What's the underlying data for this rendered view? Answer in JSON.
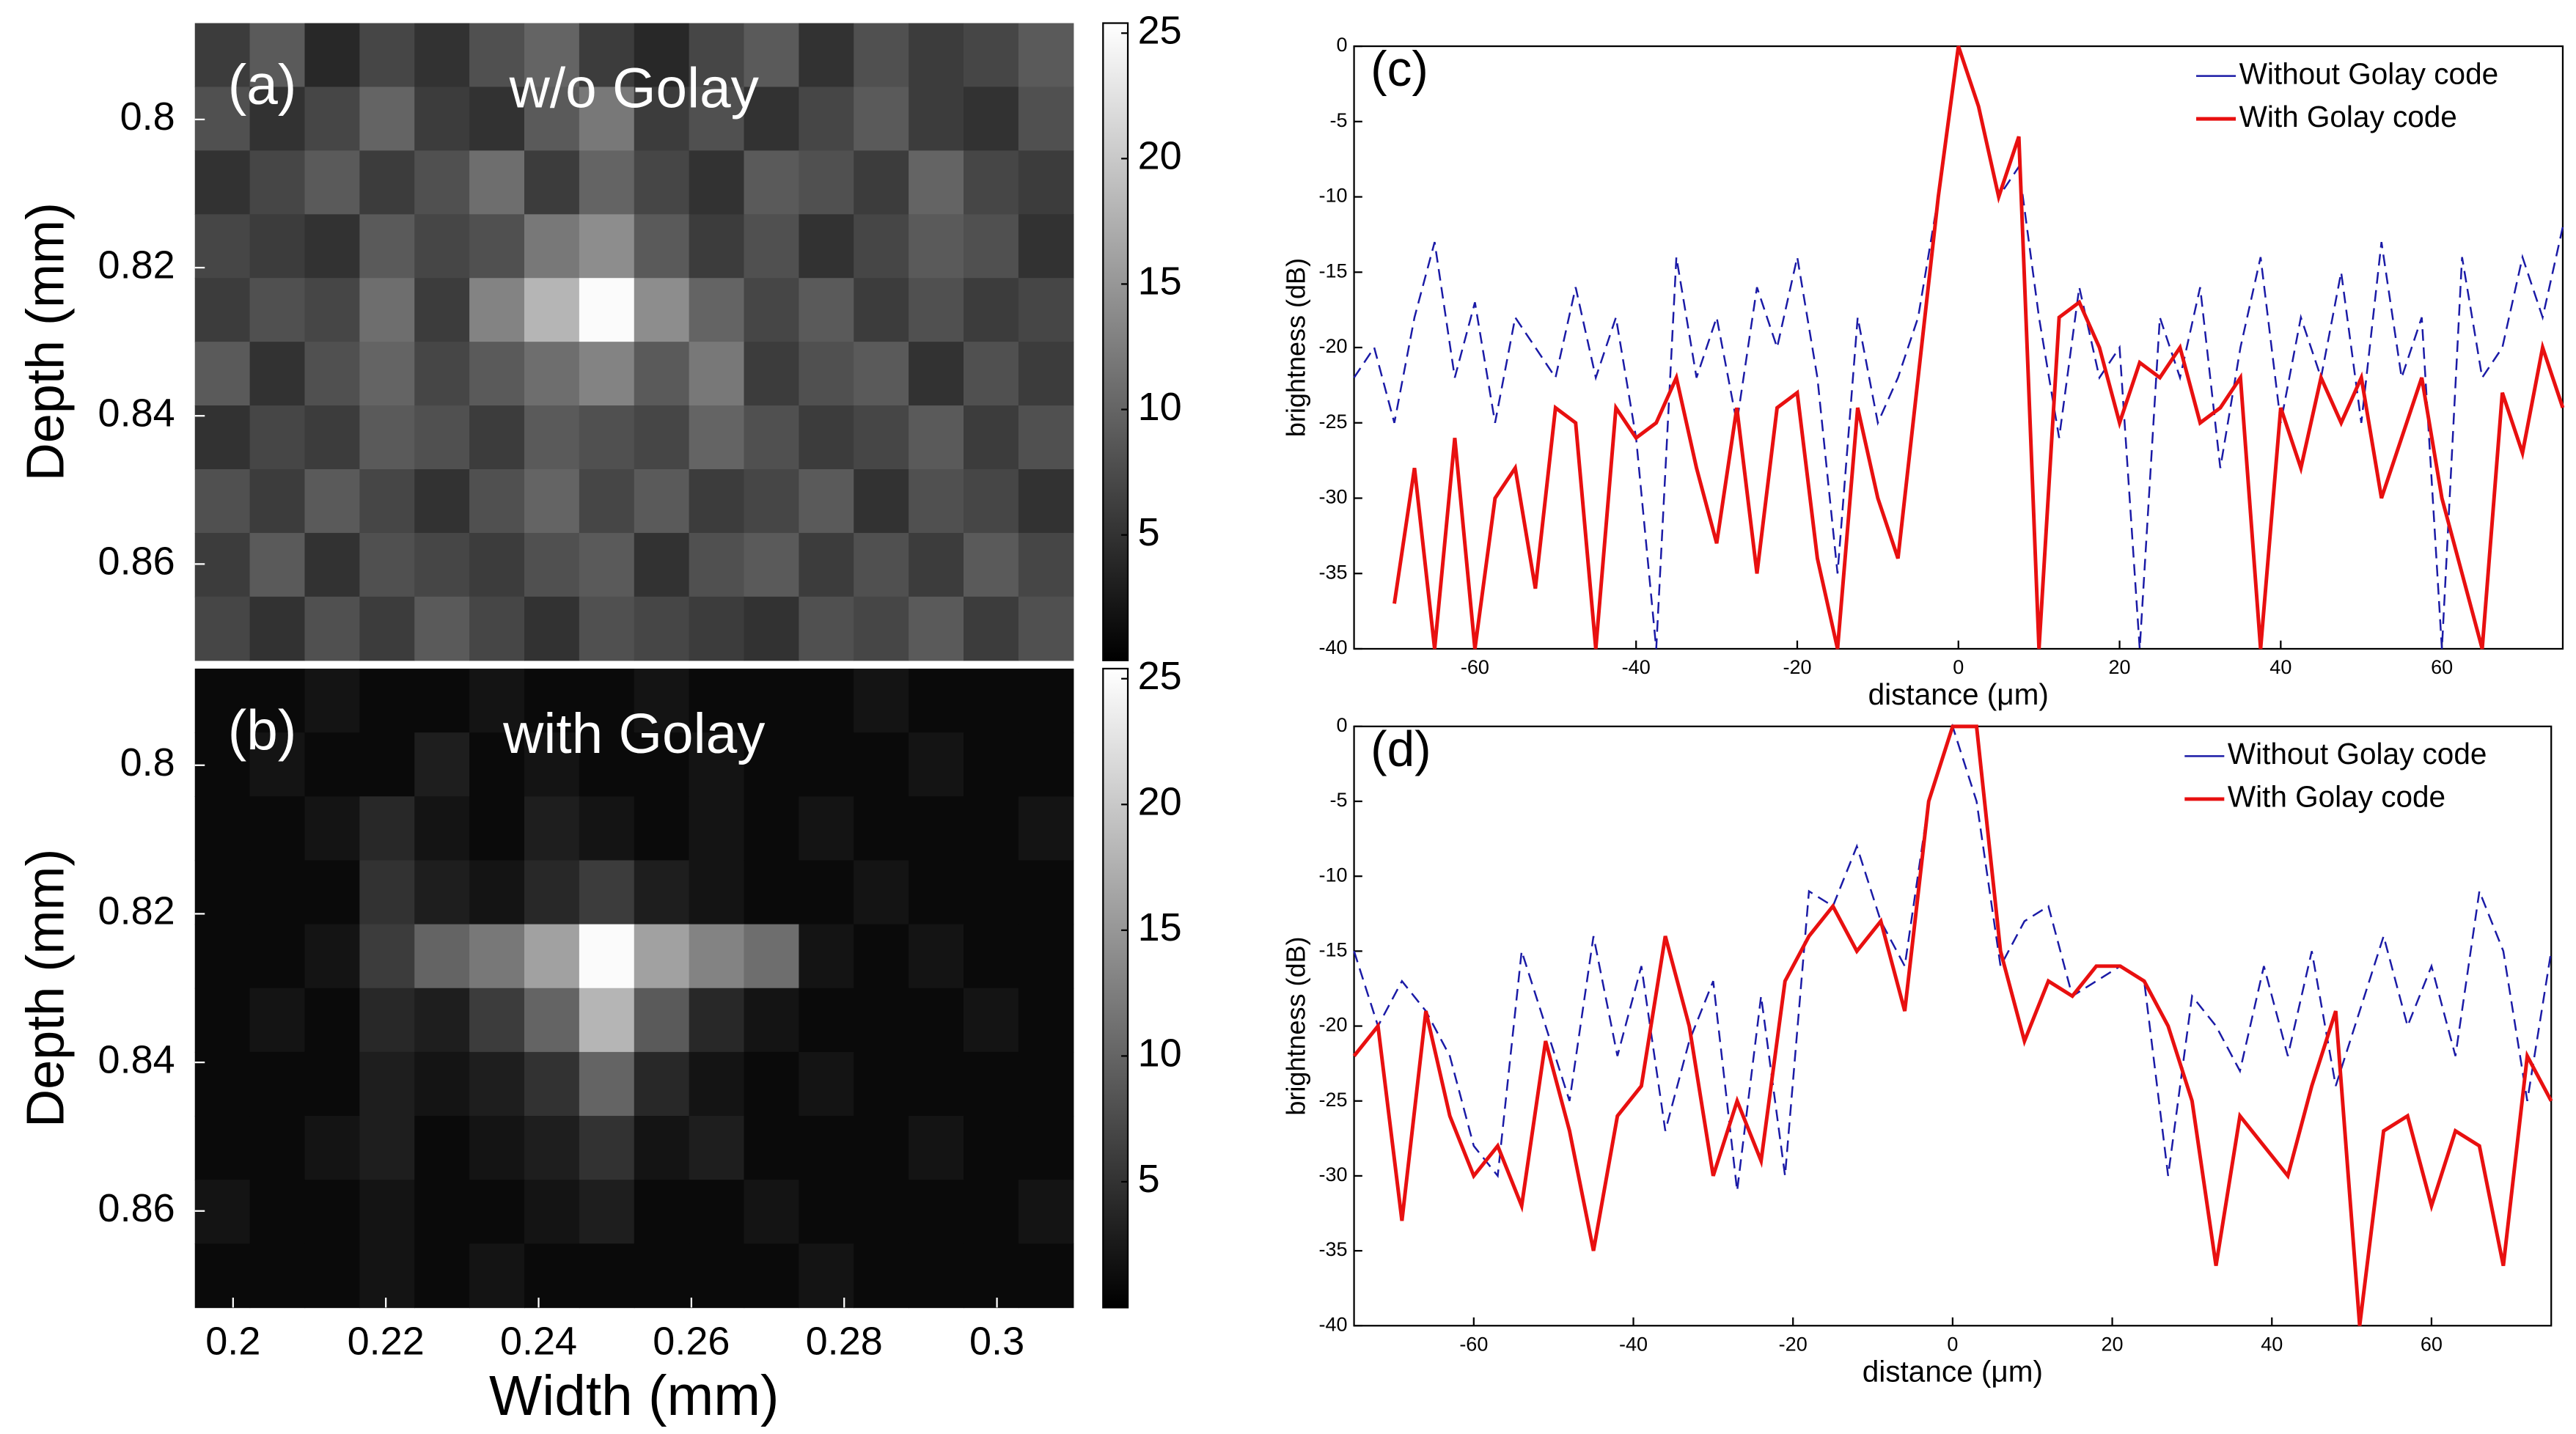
{
  "chart_data": [
    {
      "type": "heatmap",
      "label": "(a)",
      "title": "w/o Golay",
      "ylabel": "Depth (mm)",
      "xlim": [
        0.195,
        0.31
      ],
      "ylim": [
        0.787,
        0.873
      ],
      "y_direction": "reverse",
      "yticks": [
        0.8,
        0.82,
        0.84,
        0.86
      ],
      "colormap": "gray",
      "clim": [
        0,
        25.4
      ],
      "cticks": [
        5,
        10,
        15,
        20,
        25
      ],
      "z": [
        [
          6,
          9,
          4,
          7,
          5,
          8,
          10,
          6,
          4,
          7,
          9,
          5,
          8,
          6,
          7,
          9
        ],
        [
          8,
          5,
          7,
          10,
          6,
          5,
          9,
          12,
          6,
          8,
          5,
          7,
          9,
          6,
          5,
          8
        ],
        [
          5,
          7,
          9,
          6,
          8,
          11,
          6,
          10,
          7,
          5,
          9,
          8,
          6,
          10,
          7,
          6
        ],
        [
          7,
          6,
          5,
          9,
          7,
          8,
          12,
          14,
          9,
          6,
          8,
          5,
          7,
          9,
          8,
          5
        ],
        [
          6,
          8,
          7,
          11,
          6,
          13,
          18,
          25,
          14,
          10,
          7,
          9,
          6,
          8,
          6,
          7
        ],
        [
          9,
          5,
          8,
          10,
          7,
          9,
          11,
          13,
          9,
          12,
          6,
          8,
          9,
          5,
          8,
          6
        ],
        [
          5,
          7,
          6,
          9,
          8,
          6,
          9,
          8,
          7,
          10,
          8,
          6,
          7,
          9,
          6,
          8
        ],
        [
          8,
          6,
          9,
          7,
          5,
          8,
          10,
          7,
          9,
          6,
          7,
          9,
          5,
          8,
          7,
          5
        ],
        [
          6,
          9,
          5,
          8,
          7,
          6,
          8,
          9,
          5,
          8,
          9,
          6,
          8,
          6,
          9,
          7
        ],
        [
          7,
          5,
          8,
          6,
          9,
          7,
          5,
          8,
          7,
          6,
          5,
          8,
          7,
          9,
          6,
          8
        ]
      ]
    },
    {
      "type": "heatmap",
      "label": "(b)",
      "title": "with Golay",
      "ylabel": "Depth (mm)",
      "xlabel": "Width (mm)",
      "xlim": [
        0.195,
        0.31
      ],
      "ylim": [
        0.787,
        0.873
      ],
      "y_direction": "reverse",
      "xticks": [
        0.2,
        0.22,
        0.24,
        0.26,
        0.28,
        0.3
      ],
      "yticks": [
        0.8,
        0.82,
        0.84,
        0.86
      ],
      "colormap": "gray",
      "clim": [
        0,
        25.4
      ],
      "cticks": [
        5,
        10,
        15,
        20,
        25
      ],
      "z": [
        [
          1,
          1,
          2,
          1,
          1,
          2,
          1,
          1,
          2,
          1,
          1,
          1,
          2,
          1,
          1,
          1
        ],
        [
          1,
          2,
          1,
          1,
          3,
          1,
          2,
          1,
          1,
          2,
          1,
          1,
          1,
          2,
          1,
          1
        ],
        [
          1,
          1,
          2,
          4,
          2,
          1,
          3,
          2,
          1,
          2,
          1,
          2,
          1,
          1,
          1,
          2
        ],
        [
          1,
          1,
          1,
          5,
          3,
          2,
          4,
          6,
          3,
          2,
          1,
          1,
          2,
          1,
          1,
          1
        ],
        [
          1,
          1,
          2,
          6,
          10,
          12,
          16,
          25,
          16,
          13,
          11,
          2,
          1,
          2,
          1,
          1
        ],
        [
          1,
          2,
          1,
          4,
          3,
          6,
          10,
          18,
          9,
          4,
          2,
          1,
          1,
          1,
          2,
          1
        ],
        [
          1,
          1,
          1,
          3,
          2,
          3,
          5,
          10,
          4,
          2,
          1,
          2,
          1,
          1,
          1,
          1
        ],
        [
          1,
          1,
          2,
          3,
          1,
          2,
          3,
          5,
          2,
          3,
          1,
          1,
          1,
          2,
          1,
          1
        ],
        [
          2,
          1,
          1,
          2,
          1,
          1,
          2,
          3,
          1,
          1,
          2,
          1,
          1,
          1,
          1,
          2
        ],
        [
          1,
          1,
          1,
          2,
          1,
          2,
          1,
          1,
          1,
          1,
          1,
          2,
          1,
          1,
          1,
          1
        ]
      ]
    },
    {
      "type": "line",
      "label": "(c)",
      "xlabel": "distance (μm)",
      "ylabel": "brightness (dB)",
      "xlim": [
        -75,
        75
      ],
      "ylim": [
        -40,
        0
      ],
      "xticks": [
        -60,
        -40,
        -20,
        0,
        20,
        40,
        60
      ],
      "yticks": [
        0,
        -5,
        -10,
        -15,
        -20,
        -25,
        -30,
        -35,
        -40
      ],
      "legend": "northeast",
      "x": [
        -75,
        -72.5,
        -70,
        -67.5,
        -65,
        -62.5,
        -60,
        -57.5,
        -55,
        -52.5,
        -50,
        -47.5,
        -45,
        -42.5,
        -40,
        -37.5,
        -35,
        -32.5,
        -30,
        -27.5,
        -25,
        -22.5,
        -20,
        -17.5,
        -15,
        -12.5,
        -10,
        -7.5,
        -5,
        -2.5,
        0,
        2.5,
        5,
        7.5,
        10,
        12.5,
        15,
        17.5,
        20,
        22.5,
        25,
        27.5,
        30,
        32.5,
        35,
        37.5,
        40,
        42.5,
        45,
        47.5,
        50,
        52.5,
        55,
        57.5,
        60,
        62.5,
        65,
        67.5,
        70,
        72.5,
        75
      ],
      "series": [
        {
          "name": "Without Golay code",
          "color": "#1a1aa6",
          "linestyle": "dashed",
          "values": [
            -22,
            -20,
            -25,
            -18,
            -13,
            -22,
            -17,
            -25,
            -18,
            -20,
            -22,
            -16,
            -22,
            -18,
            -26,
            -40,
            -14,
            -22,
            -18,
            -25,
            -16,
            -20,
            -14,
            -22,
            -35,
            -18,
            -25,
            -22,
            -18,
            -10,
            0,
            -4,
            -10,
            -8,
            -18,
            -26,
            -16,
            -22,
            -20,
            -40,
            -18,
            -22,
            -16,
            -28,
            -20,
            -14,
            -25,
            -18,
            -22,
            -15,
            -25,
            -13,
            -22,
            -18,
            -40,
            -14,
            -22,
            -20,
            -14,
            -18,
            -12
          ]
        },
        {
          "name": "With Golay code",
          "color": "#e81010",
          "linestyle": "solid",
          "values": [
            null,
            null,
            -37,
            -28,
            -40,
            -26,
            -40,
            -30,
            -28,
            -36,
            -24,
            -25,
            -40,
            -24,
            -26,
            -25,
            -22,
            -28,
            -33,
            -24,
            -35,
            -24,
            -23,
            -34,
            -40,
            -24,
            -30,
            -34,
            -22,
            -10,
            0,
            -4,
            -10,
            -6,
            -40,
            -18,
            -17,
            -20,
            -25,
            -21,
            -22,
            -20,
            -25,
            -24,
            -22,
            -40,
            -24,
            -28,
            -22,
            -25,
            -22,
            -30,
            -26,
            -22,
            -30,
            -35,
            -40,
            -23,
            -27,
            -20,
            -24
          ]
        }
      ]
    },
    {
      "type": "line",
      "label": "(d)",
      "xlabel": "distance (μm)",
      "ylabel": "brightness (dB)",
      "xlim": [
        -75,
        75
      ],
      "ylim": [
        -40,
        0
      ],
      "xticks": [
        -60,
        -40,
        -20,
        0,
        20,
        40,
        60
      ],
      "yticks": [
        0,
        -5,
        -10,
        -15,
        -20,
        -25,
        -30,
        -35,
        -40
      ],
      "legend": "northeast",
      "x": [
        -75,
        -72,
        -69,
        -66,
        -63,
        -60,
        -57,
        -54,
        -51,
        -48,
        -45,
        -42,
        -39,
        -36,
        -33,
        -30,
        -27,
        -24,
        -21,
        -18,
        -15,
        -12,
        -9,
        -6,
        -3,
        0,
        3,
        6,
        9,
        12,
        15,
        18,
        21,
        24,
        27,
        30,
        33,
        36,
        39,
        42,
        45,
        48,
        51,
        54,
        57,
        60,
        63,
        66,
        69,
        72,
        75
      ],
      "series": [
        {
          "name": "Without Golay code",
          "color": "#1a1aa6",
          "linestyle": "dashed",
          "values": [
            -15,
            -20,
            -17,
            -19,
            -22,
            -28,
            -30,
            -15,
            -20,
            -25,
            -14,
            -22,
            -16,
            -27,
            -21,
            -17,
            -31,
            -18,
            -30,
            -11,
            -12,
            -8,
            -13,
            -16,
            -5,
            0,
            -5,
            -16,
            -13,
            -12,
            -18,
            -17,
            -16,
            -17,
            -30,
            -18,
            -20,
            -23,
            -16,
            -22,
            -15,
            -24,
            -19,
            -14,
            -20,
            -16,
            -22,
            -11,
            -15,
            -25,
            -15
          ]
        },
        {
          "name": "With Golay code",
          "color": "#e81010",
          "linestyle": "solid",
          "values": [
            -22,
            -20,
            -33,
            -19,
            -26,
            -30,
            -28,
            -32,
            -21,
            -27,
            -35,
            -26,
            -24,
            -14,
            -20,
            -30,
            -25,
            -29,
            -17,
            -14,
            -12,
            -15,
            -13,
            -19,
            -5,
            0,
            0,
            -15,
            -21,
            -17,
            -18,
            -16,
            -16,
            -17,
            -20,
            -25,
            -36,
            -26,
            -28,
            -30,
            -24,
            -19,
            -40,
            -27,
            -26,
            -32,
            -27,
            -28,
            -36,
            -22,
            -25
          ]
        }
      ]
    }
  ]
}
